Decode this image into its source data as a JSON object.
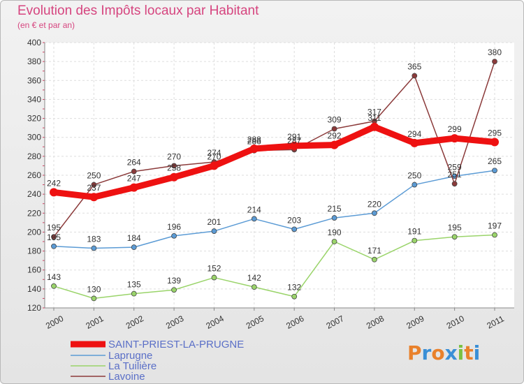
{
  "header": {
    "title": "Evolution des Impôts locaux par Habitant",
    "subtitle": "(en € et par an)"
  },
  "logo": {
    "text": "Proxiti",
    "colors": [
      "#e9812b",
      "#3a8fd6",
      "#e9812b",
      "#3a8fd6",
      "#7ac142",
      "#e9812b",
      "#3a8fd6"
    ]
  },
  "chart_data": {
    "type": "line",
    "x": [
      "2000",
      "2001",
      "2002",
      "2003",
      "2004",
      "2005",
      "2006",
      "2007",
      "2008",
      "2009",
      "2010",
      "2011"
    ],
    "ylim": [
      120,
      400
    ],
    "yticks": [
      120,
      140,
      160,
      180,
      200,
      220,
      240,
      260,
      280,
      300,
      320,
      340,
      360,
      380,
      400
    ],
    "grid": true,
    "legend_position": "bottom-left",
    "series": [
      {
        "name": "SAINT-PRIEST-LA-PRUGNE",
        "color": "#ee1111",
        "values": [
          242,
          237,
          247,
          258,
          270,
          288,
          291,
          292,
          311,
          294,
          299,
          295
        ],
        "labels": [
          "242",
          "237",
          "247",
          "258",
          "270",
          "288",
          "291",
          "292",
          "311",
          "294",
          "299",
          "295"
        ]
      },
      {
        "name": "Laprugne",
        "color": "#5b9bd5",
        "values": [
          185,
          183,
          184,
          196,
          201,
          214,
          203,
          215,
          220,
          250,
          259,
          265
        ],
        "labels": [
          "185",
          "183",
          "184",
          "196",
          "201",
          "214",
          "203",
          "215",
          "220",
          "250",
          "259",
          "265"
        ]
      },
      {
        "name": "La Tuilière",
        "color": "#9ad46a",
        "values": [
          143,
          130,
          135,
          139,
          152,
          142,
          132,
          190,
          171,
          191,
          195,
          197
        ],
        "labels": [
          "143",
          "130",
          "135",
          "139",
          "152",
          "142",
          "132",
          "190",
          "171",
          "191",
          "195",
          "197"
        ]
      },
      {
        "name": "Lavoine",
        "color": "#8b3a3a",
        "values": [
          195,
          250,
          264,
          270,
          274,
          286,
          287,
          309,
          317,
          365,
          251,
          380
        ],
        "labels": [
          "195",
          "250",
          "264",
          "270",
          "274",
          "286",
          "287",
          "309",
          "317",
          "365",
          "251",
          "380"
        ]
      }
    ]
  }
}
